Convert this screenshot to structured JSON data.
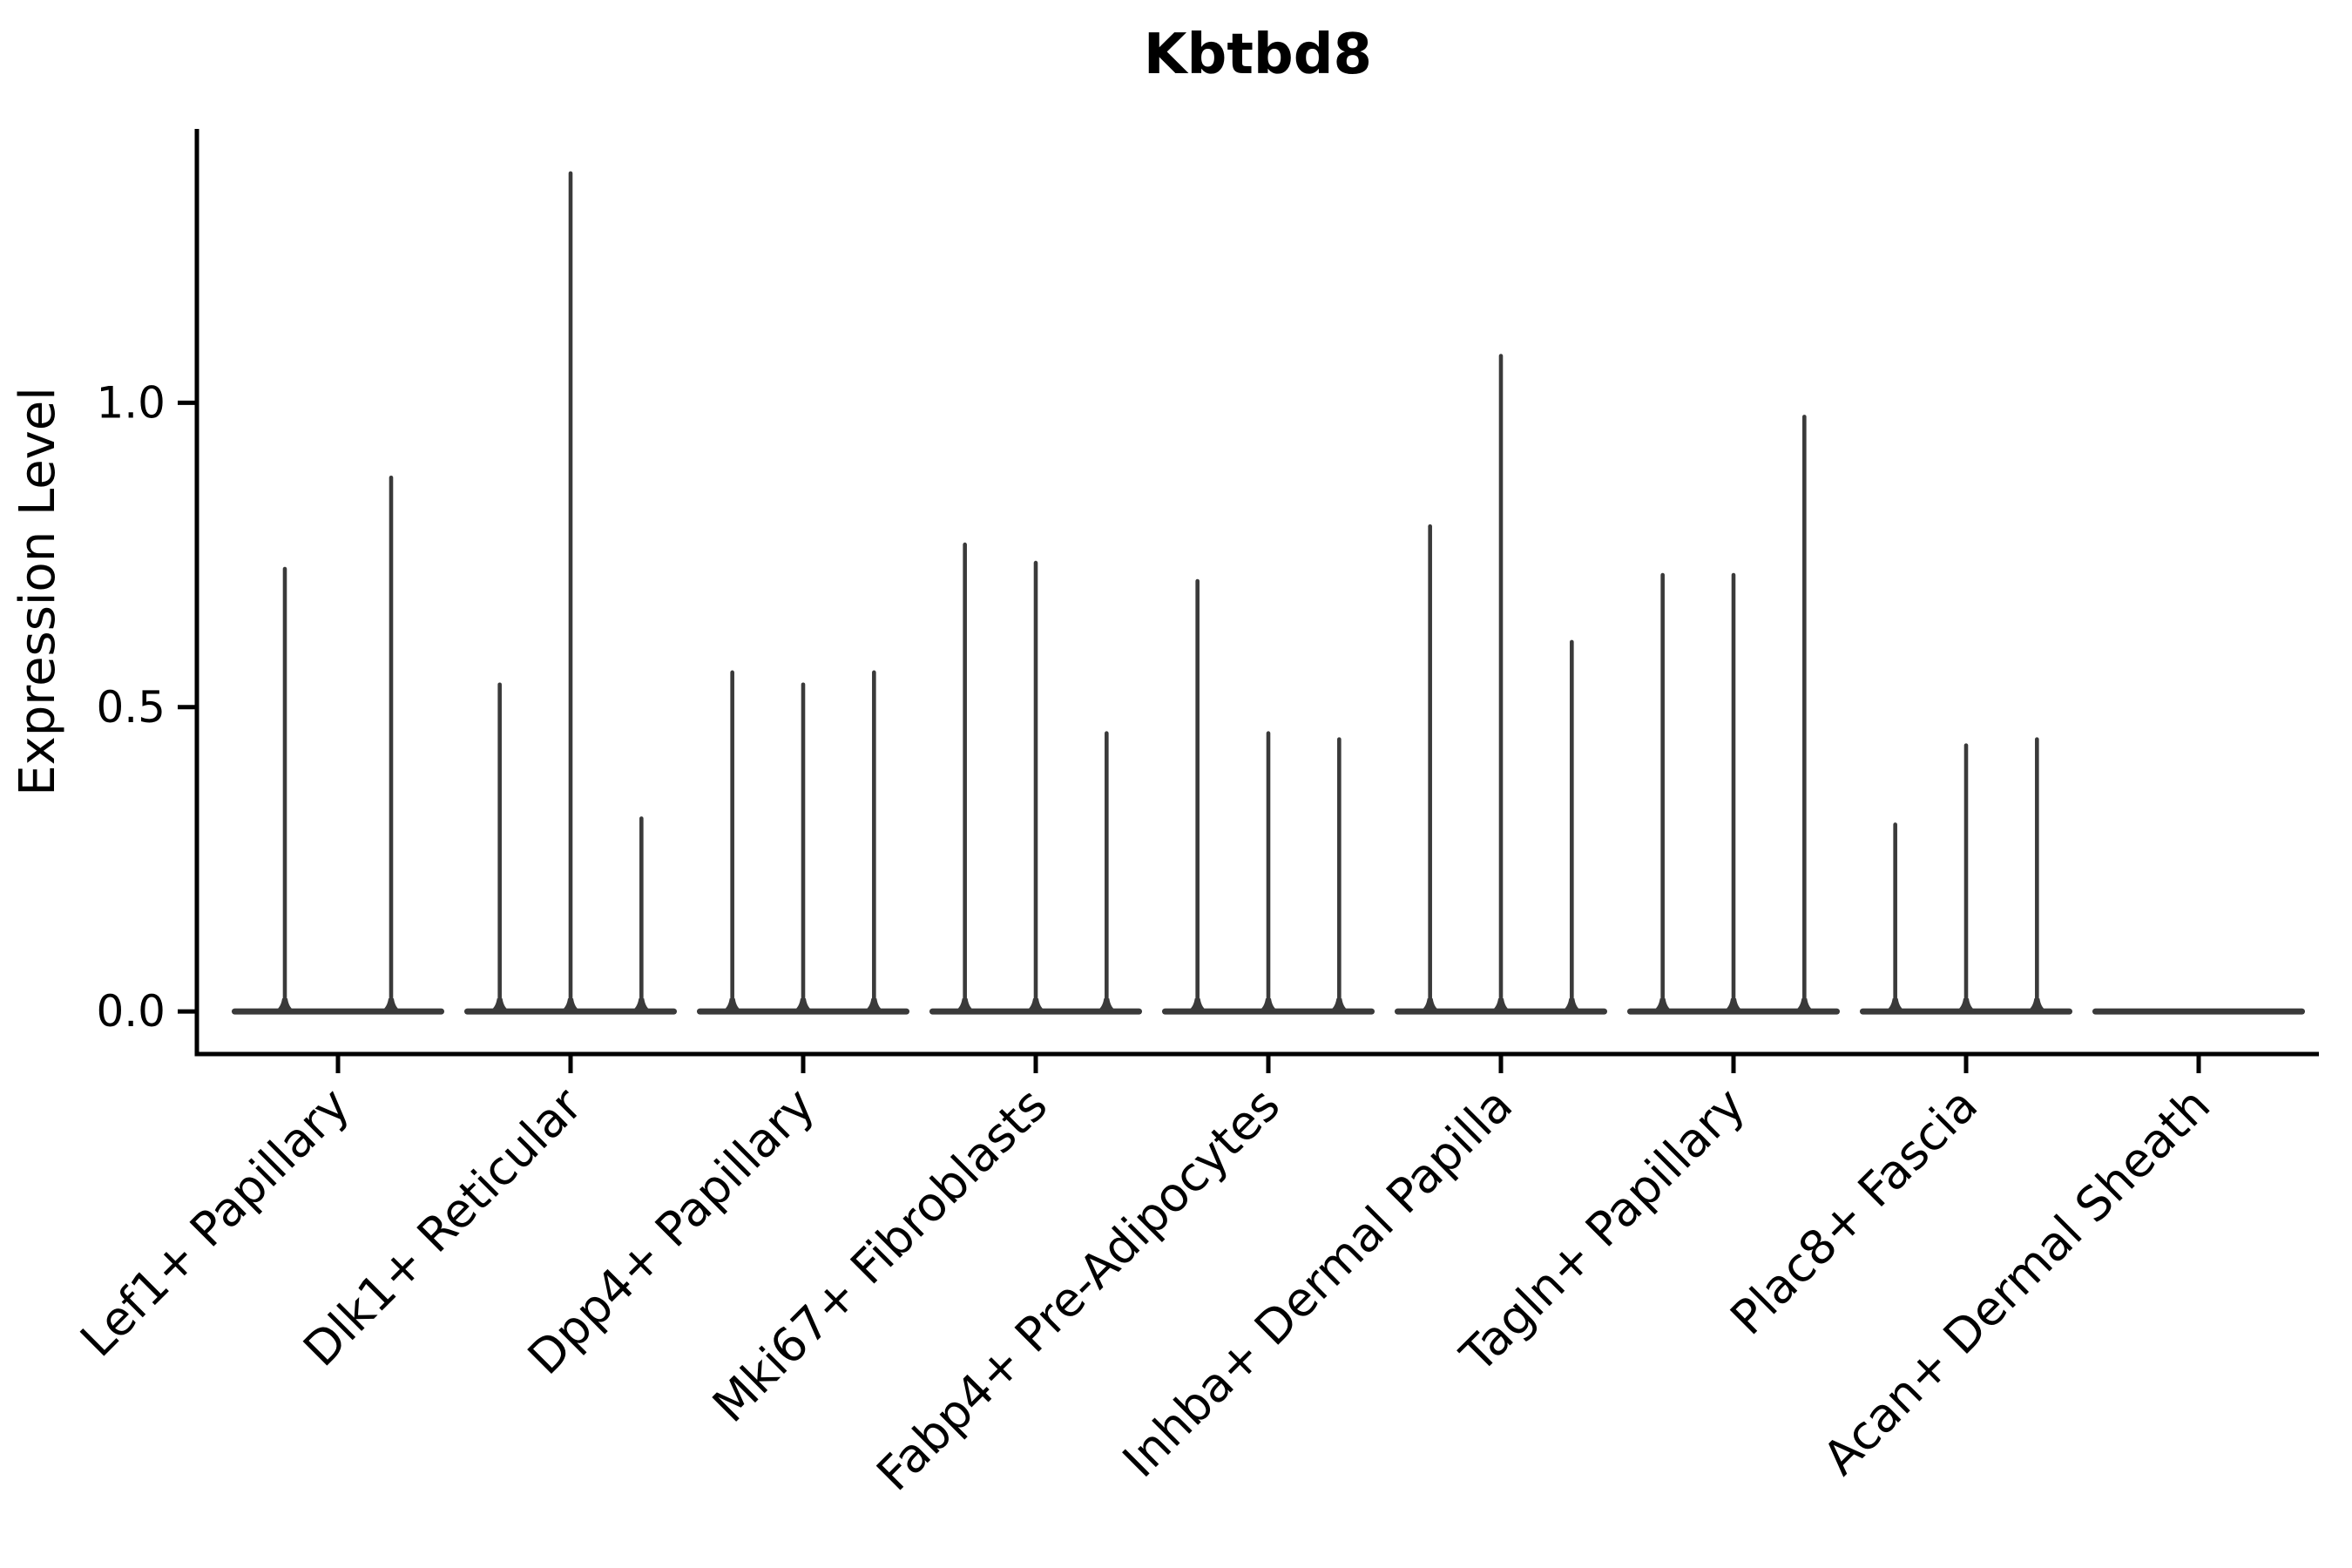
{
  "title": "Kbtbd8",
  "style": {
    "violin_color": "#3a3a3a",
    "axis_color": "#000000",
    "text_color": "#000000",
    "background": "#ffffff"
  },
  "chart_data": {
    "type": "violin",
    "title": "Kbtbd8",
    "xlabel": "",
    "ylabel": "Expression Level",
    "ylim": [
      -0.07,
      1.45
    ],
    "grid": false,
    "legend": "none",
    "x_tick_rotation": 45,
    "yticks": [
      {
        "value": 0.0,
        "label": "0.0"
      },
      {
        "value": 0.5,
        "label": "0.5"
      },
      {
        "value": 1.0,
        "label": "1.0"
      }
    ],
    "categories": [
      "Lef1+ Papillary",
      "Dlk1+ Reticular",
      "Dpp4+ Papillary",
      "Mki67+ Fibroblasts",
      "Fabp4+ Pre-Adipocytes",
      "Inhba+ Dermal Papilla",
      "Tagln+ Papillary",
      "Plac8+ Fascia",
      "Acan+ Dermal Sheath"
    ],
    "groups": [
      {
        "category": "Lef1+ Papillary",
        "violin_peaks": [
          0.73,
          0.88
        ]
      },
      {
        "category": "Dlk1+ Reticular",
        "violin_peaks": [
          0.54,
          1.38,
          0.32
        ]
      },
      {
        "category": "Dpp4+ Papillary",
        "violin_peaks": [
          0.56,
          0.54,
          0.56
        ]
      },
      {
        "category": "Mki67+ Fibroblasts",
        "violin_peaks": [
          0.77,
          0.74,
          0.46
        ]
      },
      {
        "category": "Fabp4+ Pre-Adipocytes",
        "violin_peaks": [
          0.71,
          0.46,
          0.45
        ]
      },
      {
        "category": "Inhba+ Dermal Papilla",
        "violin_peaks": [
          0.8,
          1.08,
          0.61
        ]
      },
      {
        "category": "Tagln+ Papillary",
        "violin_peaks": [
          0.72,
          0.72,
          0.98
        ]
      },
      {
        "category": "Plac8+ Fascia",
        "violin_peaks": [
          0.31,
          0.44,
          0.45
        ]
      },
      {
        "category": "Acan+ Dermal Sheath",
        "violin_peaks": []
      }
    ]
  }
}
